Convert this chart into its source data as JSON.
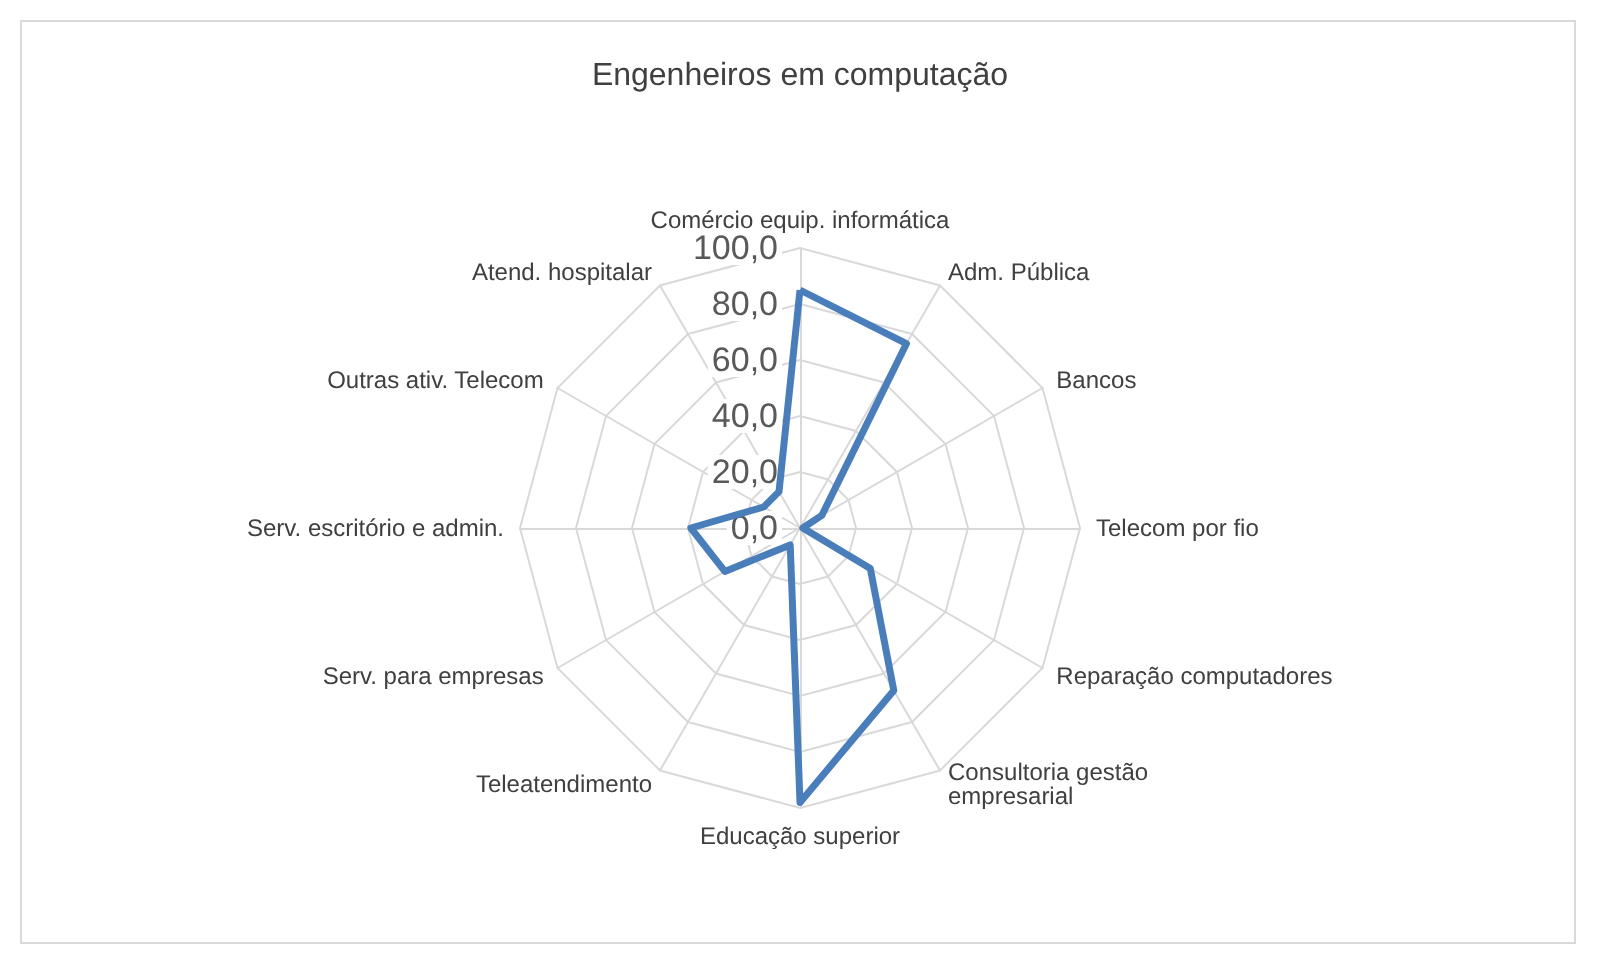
{
  "chart_data": {
    "type": "radar",
    "title": "Engenheiros em computação",
    "categories": [
      "Comércio equip. informática",
      "Adm. Pública",
      "Bancos",
      "Telecom por fio",
      "Reparação computadores",
      "Consultoria gestão empresarial",
      "Educação superior",
      "Teleatendimento",
      "Serv. para empresas",
      "Serv. escritório e admin.",
      "Outras ativ. Telecom",
      "Atend. hospitalar"
    ],
    "series": [
      {
        "color": "#4a7ebb",
        "values": [
          85,
          76,
          9,
          1,
          29,
          67,
          98,
          7,
          31,
          39,
          15,
          15
        ]
      }
    ],
    "ylim": [
      0,
      100
    ],
    "yticks": [
      {
        "value": 0,
        "label": "0,0"
      },
      {
        "value": 20,
        "label": "20,0"
      },
      {
        "value": 40,
        "label": "40,0"
      },
      {
        "value": 60,
        "label": "60,0"
      },
      {
        "value": 80,
        "label": "80,0"
      },
      {
        "value": 100,
        "label": "100,0"
      }
    ],
    "grid": true,
    "marker": "none",
    "line_style": "solid"
  }
}
